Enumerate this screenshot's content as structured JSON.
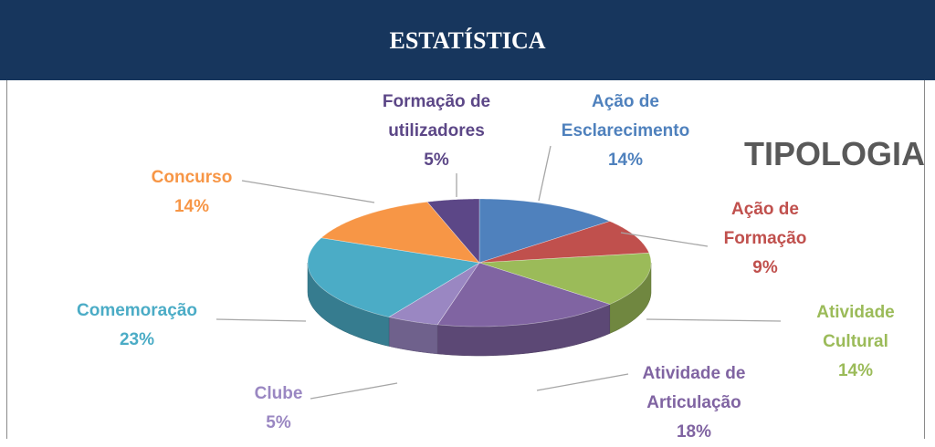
{
  "header": {
    "title": "ESTATÍSTICA"
  },
  "chart_data": {
    "type": "pie",
    "title": "TIPOLOGIA",
    "categories": [
      "Ação de Esclarecimento",
      "Ação de Formação",
      "Atividade Cultural",
      "Atividade de Articulação",
      "Clube",
      "Comemoração",
      "Concurso",
      "Formação de utilizadores"
    ],
    "values": [
      14,
      9,
      14,
      18,
      5,
      23,
      14,
      5
    ],
    "value_labels": [
      "14%",
      "9%",
      "14%",
      "18%",
      "5%",
      "23%",
      "14%",
      "5%"
    ],
    "colors": [
      "#4f81bd",
      "#c0504d",
      "#9bbb59",
      "#8064a2",
      "#9a87c2",
      "#4bacc6",
      "#f79646",
      "#5c4787"
    ]
  }
}
